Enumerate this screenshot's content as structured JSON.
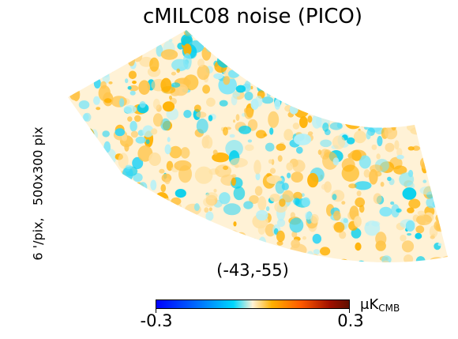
{
  "title": "cMILC08 noise (PICO)",
  "side_label": "6 '/pix,   500x300 pix",
  "coord_label": "(-43,-55)",
  "colorbar": {
    "min_label": "-0.3",
    "max_label": "0.3",
    "unit_mu": "μ",
    "unit_main": "K",
    "unit_sub": "CMB",
    "colors": [
      "#0000ff",
      "#00d8ff",
      "#fff2d6",
      "#ffb000",
      "#601000"
    ]
  }
}
